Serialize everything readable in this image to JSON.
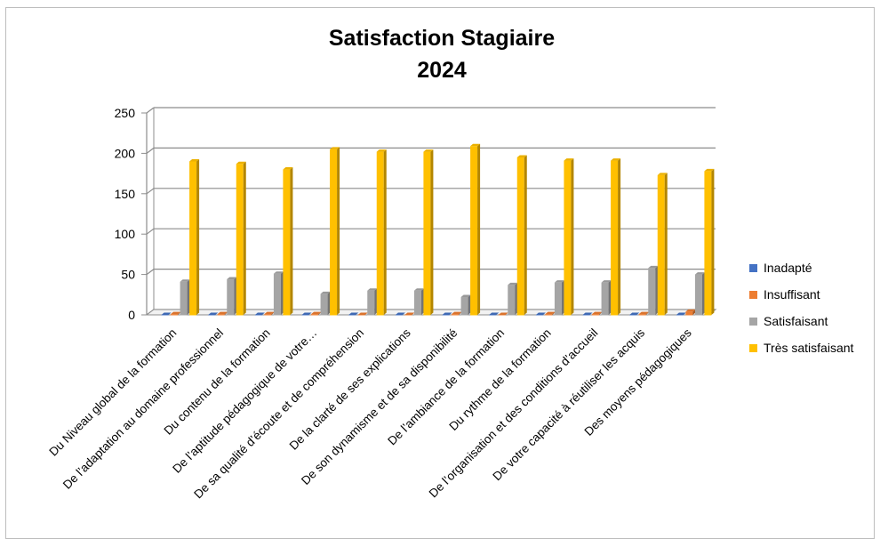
{
  "chart_data": {
    "type": "bar",
    "style": "3d-clustered-column",
    "title": [
      "Satisfaction Stagiaire",
      "2024"
    ],
    "xlabel": "",
    "ylabel": "",
    "ylim": [
      0,
      250
    ],
    "yticks": [
      0,
      50,
      100,
      150,
      200,
      250
    ],
    "grid": true,
    "legend_position": "right",
    "categories": [
      "Du Niveau global de la formation",
      "De l’adaptation au domaine professionnel",
      "Du contenu de la formation",
      "De l’aptitude pédagogique de votre…",
      "De sa qualité d’écoute et de compréhension",
      "De la clarté de ses explications",
      "De son dynamisme et de sa disponibilité",
      "De l’ambiance de la formation",
      "Du rythme de la formation",
      "De l’organisation et des conditions d’accueil",
      "De votre capacité à réutiliser les acquis",
      "Des moyens pédagogiques"
    ],
    "series": [
      {
        "name": "Inadapté",
        "color": "#4472C4",
        "values": [
          0,
          0,
          0,
          0,
          0,
          0,
          0,
          0,
          0,
          0,
          0,
          0
        ]
      },
      {
        "name": "Insuffisant",
        "color": "#ED7D31",
        "values": [
          1,
          1,
          1,
          1,
          0,
          0,
          1,
          0,
          1,
          1,
          1,
          4
        ]
      },
      {
        "name": "Satisfaisant",
        "color": "#A5A5A5",
        "values": [
          41,
          44,
          51,
          26,
          30,
          30,
          22,
          37,
          40,
          40,
          58,
          50
        ]
      },
      {
        "name": "Très satisfaisant",
        "color": "#FFC000",
        "values": [
          190,
          187,
          180,
          205,
          202,
          202,
          209,
          195,
          191,
          191,
          173,
          178
        ]
      }
    ]
  }
}
